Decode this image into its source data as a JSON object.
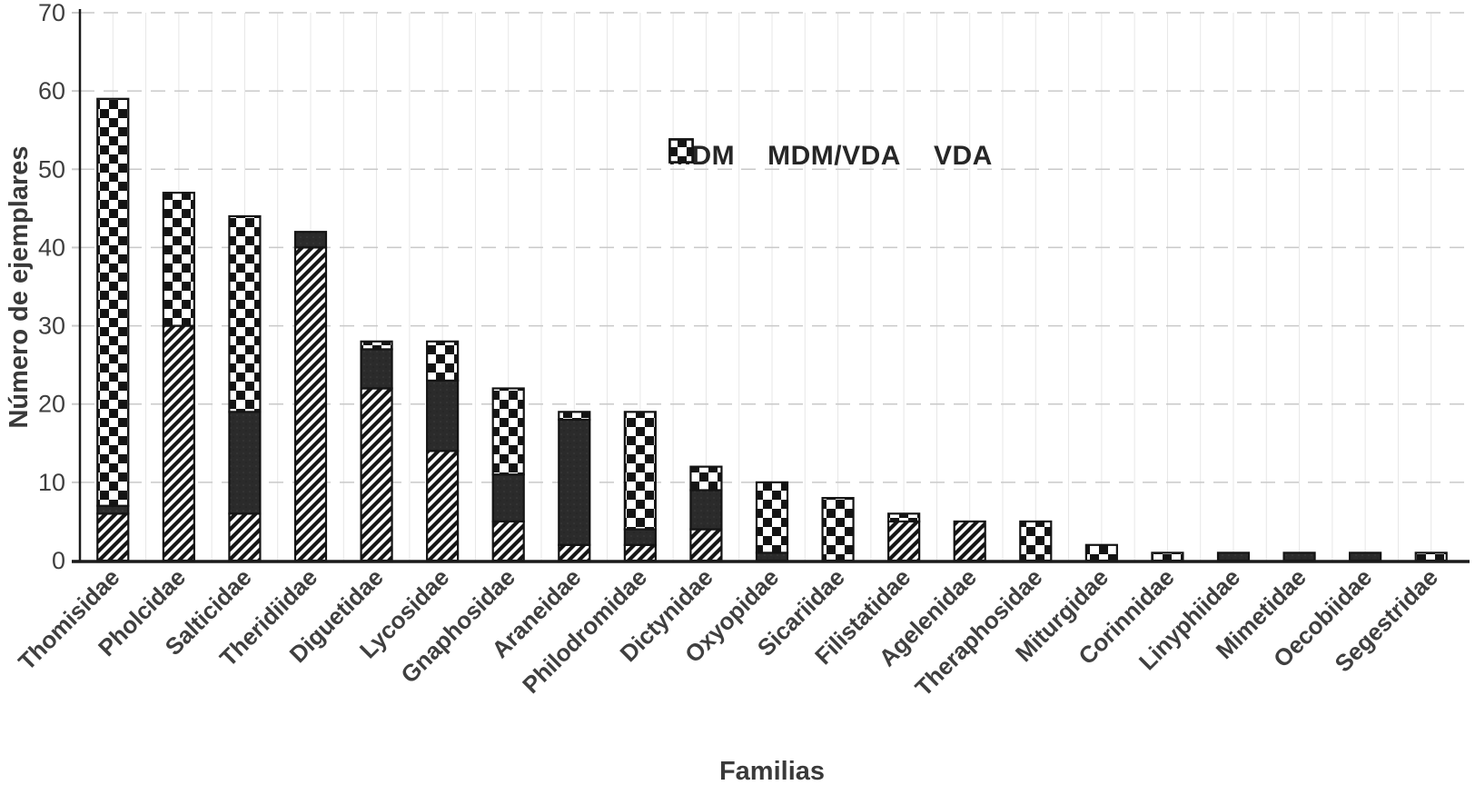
{
  "chart_data": {
    "type": "bar",
    "stacked": true,
    "title": "",
    "xlabel": "Familias",
    "ylabel": "Número de ejemplares",
    "ylim": [
      0,
      70
    ],
    "yticks": [
      0,
      10,
      20,
      30,
      40,
      50,
      60,
      70
    ],
    "grid": {
      "horizontal": true,
      "vertical_minor": true
    },
    "legend_position": "inside-top-center",
    "categories": [
      "Thomisidae",
      "Pholcidae",
      "Salticidae",
      "Theridiidae",
      "Diguetidae",
      "Lycosidae",
      "Gnaphosidae",
      "Araneidae",
      "Philodromidae",
      "Dictynidae",
      "Oxyopidae",
      "Sicariidae",
      "Filistatidae",
      "Agelenidae",
      "Theraphosidae",
      "Miturgidae",
      "Corinnidae",
      "Linyphiidae",
      "Mimetidae",
      "Oecobiidae",
      "Segestridae"
    ],
    "series": [
      {
        "name": "MDM",
        "pattern": "diagonal-hatch",
        "values": [
          6,
          30,
          6,
          40,
          22,
          14,
          5,
          2,
          2,
          4,
          0,
          0,
          5,
          5,
          0,
          0,
          0,
          0,
          0,
          0,
          0
        ]
      },
      {
        "name": "MDM/VDA",
        "pattern": "solid-dark",
        "values": [
          1,
          0,
          13,
          2,
          5,
          9,
          6,
          16,
          2,
          5,
          1,
          0,
          0,
          0,
          0,
          0,
          0,
          1,
          1,
          1,
          0
        ]
      },
      {
        "name": "VDA",
        "pattern": "checker",
        "values": [
          52,
          17,
          25,
          0,
          1,
          5,
          11,
          1,
          15,
          3,
          9,
          8,
          1,
          0,
          5,
          2,
          1,
          0,
          0,
          0,
          1
        ]
      }
    ],
    "totals": [
      59,
      47,
      44,
      42,
      28,
      28,
      22,
      19,
      19,
      12,
      10,
      8,
      6,
      5,
      5,
      2,
      1,
      1,
      1,
      1,
      1
    ]
  },
  "colors": {
    "background": "#ffffff",
    "grid_major": "#c9c9c9",
    "grid_minor": "#e7e7e7",
    "axis": "#1a1a1a",
    "bar_border": "#141414",
    "pattern_ink": "#161616",
    "solid_fill": "#2b2b2b",
    "text": "#3f3f3f"
  }
}
